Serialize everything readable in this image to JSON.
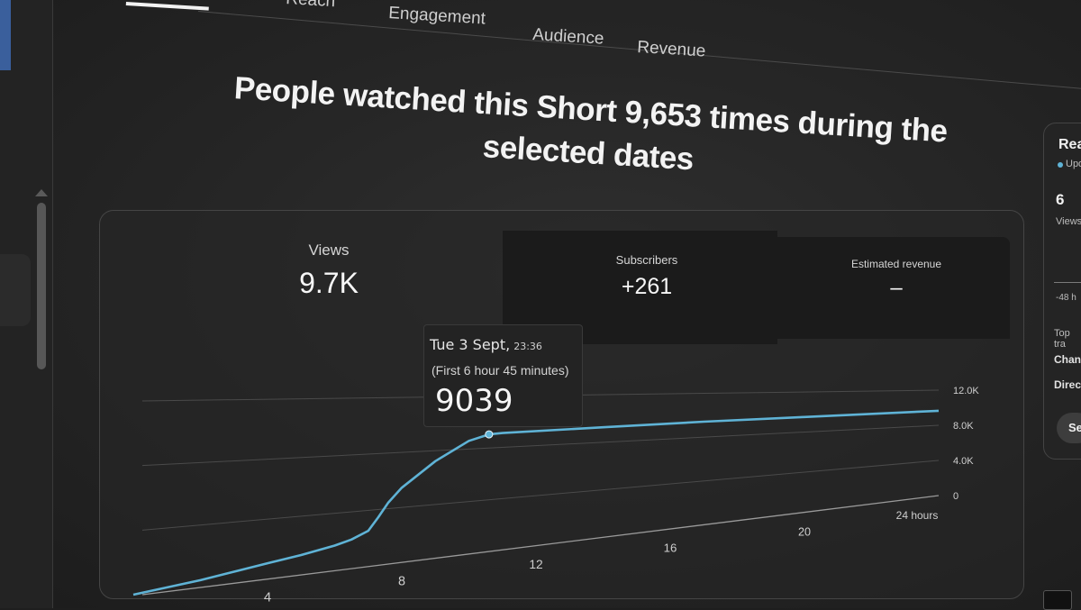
{
  "tabs": {
    "reach": "Reach",
    "engagement": "Engagement",
    "audience": "Audience",
    "revenue": "Revenue"
  },
  "headline": "People watched this Short 9,653 times during the selected dates",
  "metrics": {
    "views": {
      "label": "Views",
      "value": "9.7K"
    },
    "subscribers": {
      "label": "Subscribers",
      "value": "+261"
    },
    "revenue": {
      "label": "Estimated revenue",
      "value": "–"
    }
  },
  "tooltip": {
    "date": "Tue 3 Sept,",
    "time": "23:36",
    "subtitle": "(First 6 hour 45 minutes)",
    "value": "9039"
  },
  "right_panel": {
    "title": "Rea",
    "status": "Upd",
    "number": "6",
    "views_label": "Views",
    "hours_label": "-48 h",
    "top_label": "Top tra",
    "channel_label": "Chann",
    "direct_label": "Direct",
    "button_label": "Se"
  },
  "colors": {
    "line": "#5fb3d6",
    "background": "#262626",
    "accent": "#3a5f9c"
  },
  "chart_data": {
    "type": "line",
    "title": "",
    "xlabel": "",
    "ylabel": "",
    "x_ticks": [
      "4",
      "8",
      "12",
      "16",
      "20",
      "24 hours"
    ],
    "y_ticks": [
      "0",
      "4.0K",
      "8.0K",
      "12.0K"
    ],
    "ylim": [
      0,
      12000
    ],
    "xlim": [
      0,
      24
    ],
    "grid": true,
    "series": [
      {
        "x": [
          0,
          2,
          4,
          5,
          6,
          6.5,
          7,
          7.3,
          7.6,
          8,
          9,
          10,
          10.6,
          11,
          14,
          17,
          20,
          24
        ],
        "values": [
          0,
          400,
          1000,
          1300,
          1700,
          2000,
          2500,
          3400,
          4400,
          5400,
          7200,
          8600,
          9039,
          9100,
          9250,
          9400,
          9500,
          9653
        ]
      }
    ]
  }
}
